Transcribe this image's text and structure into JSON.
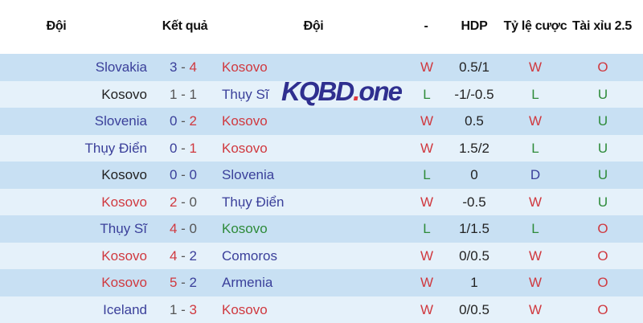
{
  "header": {
    "home": "Đội",
    "result": "Kết quả",
    "away": "Đội",
    "outcome": "-",
    "hdp": "HDP",
    "odds": "Tỷ lệ cược",
    "ou": "Tài xỉu 2.5"
  },
  "watermark": {
    "brand": "KQBD",
    "dot": ".",
    "suffix": "one"
  },
  "colors": {
    "blue": "#3a3f9a",
    "red": "#d0393f",
    "green": "#2e8b3a",
    "black": "#222222",
    "gray": "#555555",
    "W": "#d0393f",
    "L": "#2e8b3a",
    "D": "#3a3f9a",
    "O": "#d0393f",
    "U": "#2e8b3a"
  },
  "rows": [
    {
      "home": "Slovakia",
      "hc": "blue",
      "hs": "3",
      "hsc": "blue",
      "as": "4",
      "asc": "red",
      "away": "Kosovo",
      "ac": "red",
      "res": "W",
      "hdp": "0.5/1",
      "odds": "W",
      "ou": "O"
    },
    {
      "home": "Kosovo",
      "hc": "black",
      "hs": "1",
      "hsc": "gray",
      "as": "1",
      "asc": "gray",
      "away": "Thụy Sĩ",
      "ac": "blue",
      "res": "L",
      "hdp": "-1/-0.5",
      "odds": "L",
      "ou": "U"
    },
    {
      "home": "Slovenia",
      "hc": "blue",
      "hs": "0",
      "hsc": "blue",
      "as": "2",
      "asc": "red",
      "away": "Kosovo",
      "ac": "red",
      "res": "W",
      "hdp": "0.5",
      "odds": "W",
      "ou": "U"
    },
    {
      "home": "Thụy Điển",
      "hc": "blue",
      "hs": "0",
      "hsc": "blue",
      "as": "1",
      "asc": "red",
      "away": "Kosovo",
      "ac": "red",
      "res": "W",
      "hdp": "1.5/2",
      "odds": "L",
      "ou": "U"
    },
    {
      "home": "Kosovo",
      "hc": "black",
      "hs": "0",
      "hsc": "blue",
      "as": "0",
      "asc": "blue",
      "away": "Slovenia",
      "ac": "blue",
      "res": "L",
      "hdp": "0",
      "odds": "D",
      "ou": "U"
    },
    {
      "home": "Kosovo",
      "hc": "red",
      "hs": "2",
      "hsc": "red",
      "as": "0",
      "asc": "gray",
      "away": "Thụy Điển",
      "ac": "blue",
      "res": "W",
      "hdp": "-0.5",
      "odds": "W",
      "ou": "U"
    },
    {
      "home": "Thụy Sĩ",
      "hc": "blue",
      "hs": "4",
      "hsc": "red",
      "as": "0",
      "asc": "gray",
      "away": "Kosovo",
      "ac": "green",
      "res": "L",
      "hdp": "1/1.5",
      "odds": "L",
      "ou": "O"
    },
    {
      "home": "Kosovo",
      "hc": "red",
      "hs": "4",
      "hsc": "red",
      "as": "2",
      "asc": "blue",
      "away": "Comoros",
      "ac": "blue",
      "res": "W",
      "hdp": "0/0.5",
      "odds": "W",
      "ou": "O"
    },
    {
      "home": "Kosovo",
      "hc": "red",
      "hs": "5",
      "hsc": "red",
      "as": "2",
      "asc": "blue",
      "away": "Armenia",
      "ac": "blue",
      "res": "W",
      "hdp": "1",
      "odds": "W",
      "ou": "O"
    },
    {
      "home": "Iceland",
      "hc": "blue",
      "hs": "1",
      "hsc": "gray",
      "as": "3",
      "asc": "red",
      "away": "Kosovo",
      "ac": "red",
      "res": "W",
      "hdp": "0/0.5",
      "odds": "W",
      "ou": "O"
    }
  ]
}
